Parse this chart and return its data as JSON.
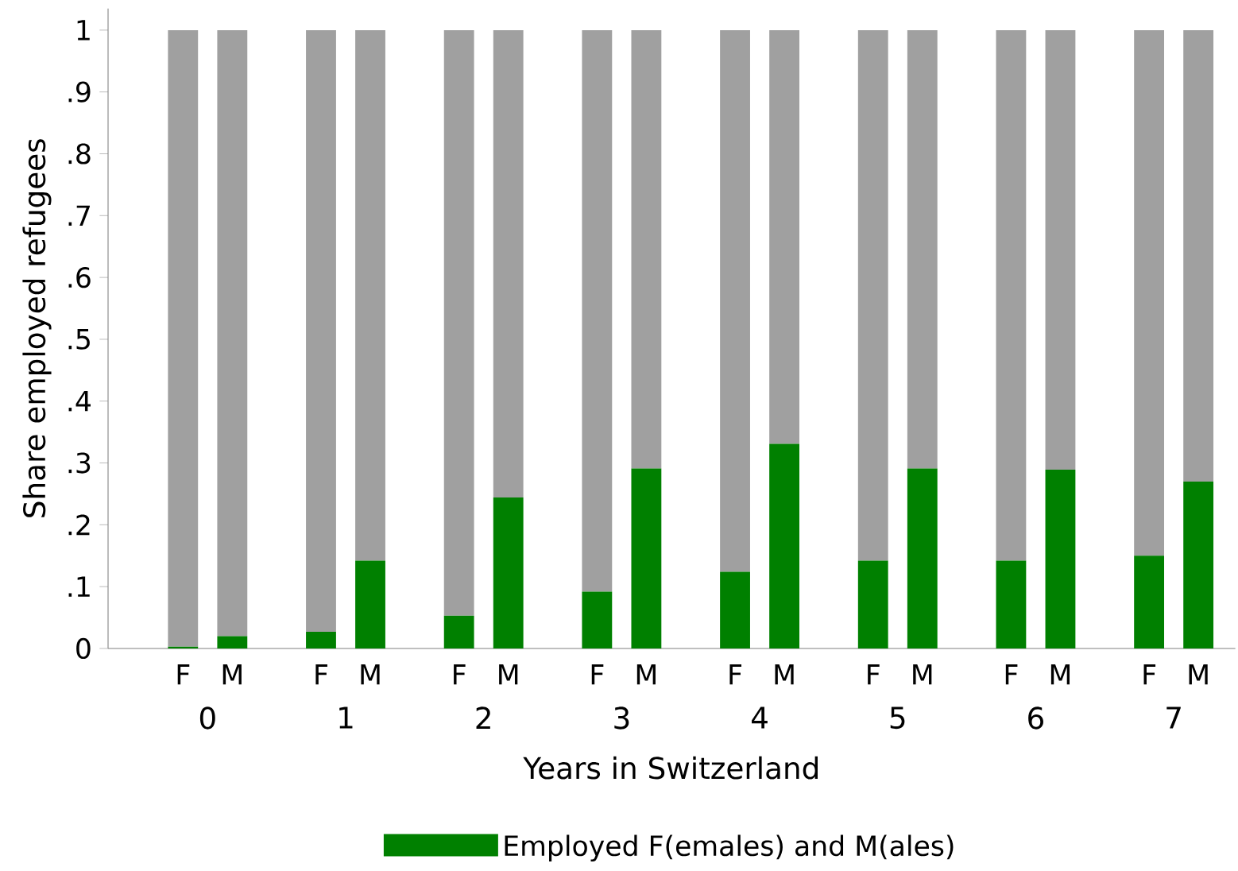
{
  "chart_data": {
    "type": "bar",
    "stacked": true,
    "xlabel": "Years in Switzerland",
    "ylabel": "Share employed refugees",
    "categories": [
      "F",
      "M",
      "F",
      "M",
      "F",
      "M",
      "F",
      "M",
      "F",
      "M",
      "F",
      "M",
      "F",
      "M",
      "F",
      "M"
    ],
    "annotations": [
      "0",
      "1",
      "2",
      "3",
      "4",
      "5",
      "6",
      "7"
    ],
    "series": [
      {
        "name": "Employed F(emales) and M(ales)",
        "color": "#008000",
        "values": [
          0.003,
          0.02,
          0.027,
          0.142,
          0.053,
          0.244,
          0.092,
          0.291,
          0.124,
          0.331,
          0.142,
          0.291,
          0.142,
          0.289,
          0.15,
          0.27
        ]
      },
      {
        "color": "#a0a0a0",
        "values": [
          0.997,
          0.98,
          0.973,
          0.858,
          0.947,
          0.756,
          0.908,
          0.709,
          0.876,
          0.669,
          0.858,
          0.709,
          0.858,
          0.711,
          0.85,
          0.73
        ]
      }
    ],
    "ylim": [
      0,
      1.035
    ],
    "yticks": [
      0,
      {
        "value": 0.1,
        "label": ".1"
      },
      {
        "value": 0.2,
        "label": ".2"
      },
      {
        "value": 0.3,
        "label": ".3"
      },
      {
        "value": 0.4,
        "label": ".4"
      },
      {
        "value": 0.5,
        "label": ".5"
      },
      {
        "value": 0.6,
        "label": ".6"
      },
      {
        "value": 0.7,
        "label": ".7"
      },
      {
        "value": 0.8,
        "label": ".8"
      },
      {
        "value": 0.9,
        "label": ".9"
      },
      1
    ],
    "legend": "bottom"
  }
}
